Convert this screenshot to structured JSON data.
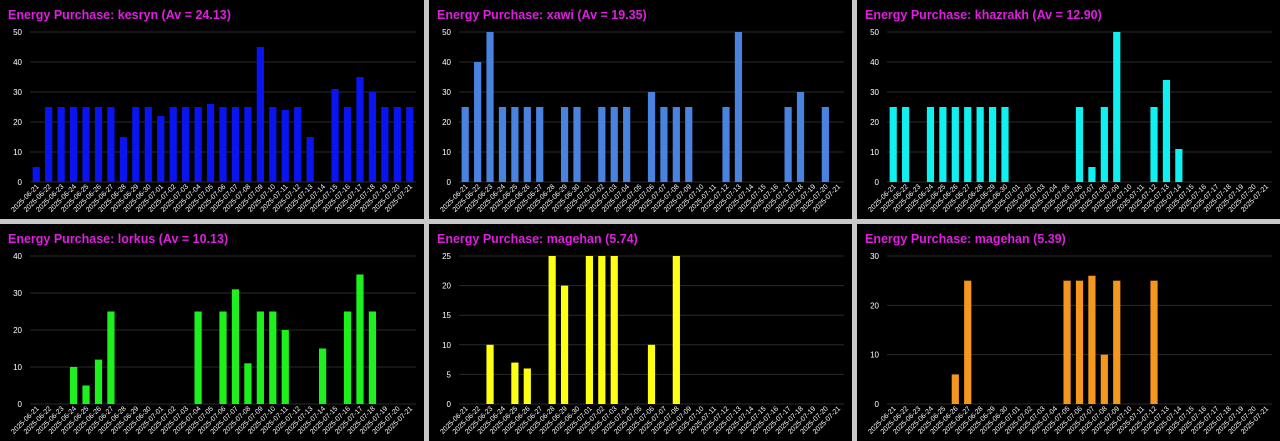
{
  "colors": {
    "title": "#e01ee0",
    "background": "#000000",
    "gridline": "#2a2a2a",
    "axis_text": "#ffffff"
  },
  "categories": [
    "2025-06-21",
    "2025-06-22",
    "2025-06-23",
    "2025-06-24",
    "2025-06-25",
    "2025-06-26",
    "2025-06-27",
    "2025-06-28",
    "2025-06-29",
    "2025-06-30",
    "2025-07-01",
    "2025-07-02",
    "2025-07-03",
    "2025-07-04",
    "2025-07-05",
    "2025-07-06",
    "2025-07-07",
    "2025-07-08",
    "2025-07-09",
    "2025-07-10",
    "2025-07-11",
    "2025-07-12",
    "2025-07-13",
    "2025-07-14",
    "2025-07-15",
    "2025-07-16",
    "2025-07-17",
    "2025-07-18",
    "2025-07-19",
    "2025-07-20",
    "2025-07-21"
  ],
  "chart_data": [
    {
      "type": "bar",
      "title": "Energy Purchase: kesryn (Av = 24.13)",
      "color": "#0a14f0",
      "ylim": [
        0,
        50
      ],
      "yticks": [
        0,
        10,
        20,
        30,
        40,
        50
      ],
      "values": [
        5,
        25,
        25,
        25,
        25,
        25,
        25,
        15,
        25,
        25,
        22,
        25,
        25,
        25,
        26,
        25,
        25,
        25,
        45,
        25,
        24,
        25,
        15,
        0,
        31,
        25,
        35,
        30,
        25,
        25,
        25
      ]
    },
    {
      "type": "bar",
      "title": "Energy Purchase: xawi (Av = 19.35)",
      "color": "#4a82e0",
      "ylim": [
        0,
        50
      ],
      "yticks": [
        0,
        10,
        20,
        30,
        40,
        50
      ],
      "values": [
        25,
        40,
        50,
        25,
        25,
        25,
        25,
        0,
        25,
        25,
        0,
        25,
        25,
        25,
        0,
        30,
        25,
        25,
        25,
        0,
        0,
        25,
        50,
        0,
        0,
        0,
        25,
        30,
        0,
        25,
        0
      ]
    },
    {
      "type": "bar",
      "title": "Energy Purchase: khazrakh (Av = 12.90)",
      "color": "#10f0f0",
      "ylim": [
        0,
        50
      ],
      "yticks": [
        0,
        10,
        20,
        30,
        40,
        50
      ],
      "values": [
        25,
        25,
        0,
        25,
        25,
        25,
        25,
        25,
        25,
        25,
        0,
        0,
        0,
        0,
        0,
        25,
        5,
        25,
        50,
        0,
        0,
        25,
        34,
        11,
        0,
        0,
        0,
        0,
        0,
        0,
        0
      ]
    },
    {
      "type": "bar",
      "title": "Energy Purchase: lorkus (Av = 10.13)",
      "color": "#1ef01e",
      "ylim": [
        0,
        40
      ],
      "yticks": [
        0,
        10,
        20,
        30,
        40
      ],
      "values": [
        0,
        0,
        0,
        10,
        5,
        12,
        25,
        0,
        0,
        0,
        0,
        0,
        0,
        25,
        0,
        25,
        31,
        11,
        25,
        25,
        20,
        0,
        0,
        15,
        0,
        25,
        35,
        25,
        0,
        0,
        0
      ]
    },
    {
      "type": "bar",
      "title": "Energy Purchase: magehan (5.74)",
      "color": "#ffff14",
      "ylim": [
        0,
        25
      ],
      "yticks": [
        0,
        5,
        10,
        15,
        20,
        25
      ],
      "values": [
        0,
        0,
        10,
        0,
        7,
        6,
        0,
        25,
        20,
        0,
        25,
        25,
        25,
        0,
        0,
        10,
        0,
        25,
        0,
        0,
        0,
        0,
        0,
        0,
        0,
        0,
        0,
        0,
        0,
        0,
        0
      ]
    },
    {
      "type": "bar",
      "title": "Energy Purchase: magehan (5.39)",
      "color": "#f5961e",
      "ylim": [
        0,
        30
      ],
      "yticks": [
        0,
        10,
        20,
        30
      ],
      "values": [
        0,
        0,
        0,
        0,
        0,
        6,
        25,
        0,
        0,
        0,
        0,
        0,
        0,
        0,
        25,
        25,
        26,
        10,
        25,
        0,
        0,
        25,
        0,
        0,
        0,
        0,
        0,
        0,
        0,
        0,
        0
      ]
    }
  ]
}
